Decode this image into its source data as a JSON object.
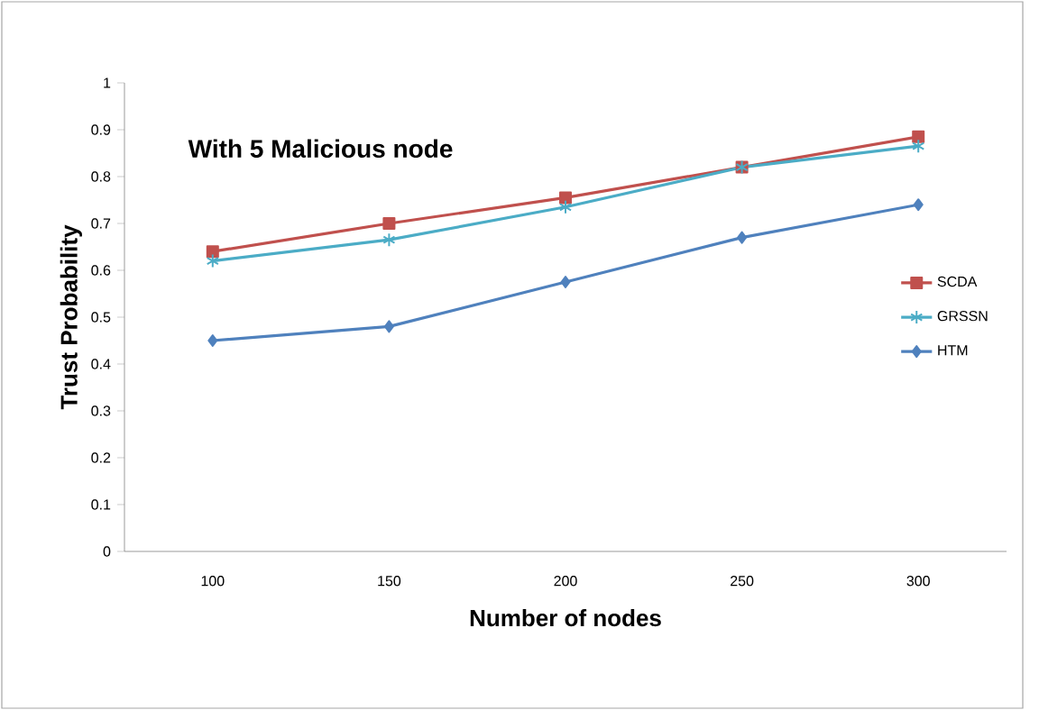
{
  "chart_data": {
    "type": "line",
    "title": "With 5 Malicious node",
    "xlabel": "Number of nodes",
    "ylabel": "Trust Probability",
    "categories": [
      "100",
      "150",
      "200",
      "250",
      "300"
    ],
    "series": [
      {
        "name": "SCDA",
        "color": "#c0504d",
        "marker": "square",
        "values": [
          0.64,
          0.7,
          0.755,
          0.82,
          0.885
        ]
      },
      {
        "name": "GRSSN",
        "color": "#4bacc6",
        "marker": "cross",
        "values": [
          0.62,
          0.665,
          0.735,
          0.82,
          0.865
        ]
      },
      {
        "name": "HTM",
        "color": "#4f81bd",
        "marker": "diamond",
        "values": [
          0.45,
          0.48,
          0.575,
          0.67,
          0.74
        ]
      }
    ],
    "ylim": [
      0,
      1
    ],
    "yticks": [
      0,
      0.1,
      0.2,
      0.3,
      0.4,
      0.5,
      0.6,
      0.7,
      0.8,
      0.9,
      1
    ],
    "grid": false,
    "legend": "right",
    "line_style": "solid"
  }
}
